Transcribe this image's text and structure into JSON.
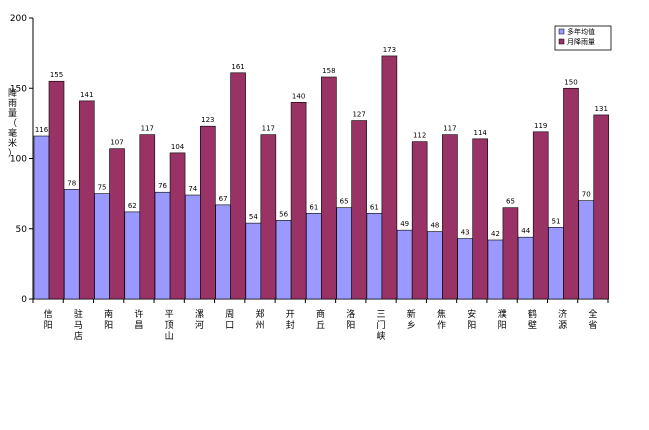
{
  "chart_data": {
    "type": "bar",
    "ylabel": "降雨量（毫米）",
    "ylim": [
      0,
      200
    ],
    "yticks": [
      0,
      50,
      100,
      150,
      200
    ],
    "categories": [
      "信阳",
      "驻马店",
      "南阳",
      "许昌",
      "平顶山",
      "漯河",
      "周口",
      "郑州",
      "开封",
      "商丘",
      "洛阳",
      "三门峡",
      "新乡",
      "焦作",
      "安阳",
      "濮阳",
      "鹤壁",
      "济源",
      "全省"
    ],
    "series": [
      {
        "name": "多年均值",
        "color": "#9999ff",
        "values": [
          116,
          78,
          75,
          62,
          76,
          74,
          67,
          54,
          56,
          61,
          65,
          61,
          49,
          48,
          43,
          42,
          44,
          51,
          70
        ]
      },
      {
        "name": "月降雨量",
        "color": "#993366",
        "values": [
          155,
          141,
          107,
          117,
          104,
          123,
          161,
          117,
          140,
          158,
          127,
          173,
          112,
          117,
          114,
          65,
          119,
          150,
          131
        ]
      }
    ],
    "legend": "top-right",
    "grid": false
  }
}
